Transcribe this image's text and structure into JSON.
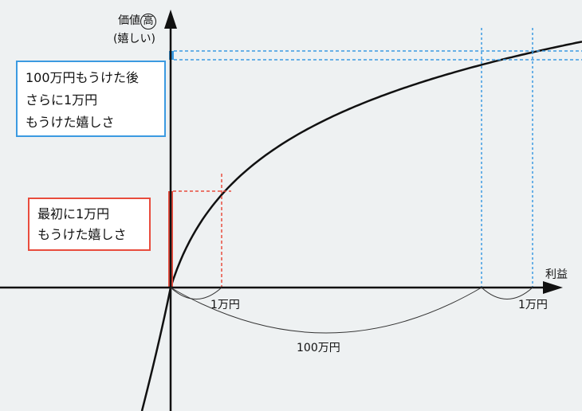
{
  "y_axis": {
    "label": "価値",
    "circled": "高",
    "sub": "(嬉しい)"
  },
  "x_axis": {
    "label": "利益"
  },
  "boxes": {
    "after": {
      "lines": [
        "100万円もうけた後",
        "さらに1万円",
        "もうけた嬉しさ"
      ],
      "color": "#3b9ae1"
    },
    "first": {
      "lines": [
        "最初に1万円",
        "もうけた嬉しさ"
      ],
      "color": "#e84c3d"
    }
  },
  "spans": {
    "first": "1万円",
    "total": "100万円",
    "after": "1万円"
  }
}
